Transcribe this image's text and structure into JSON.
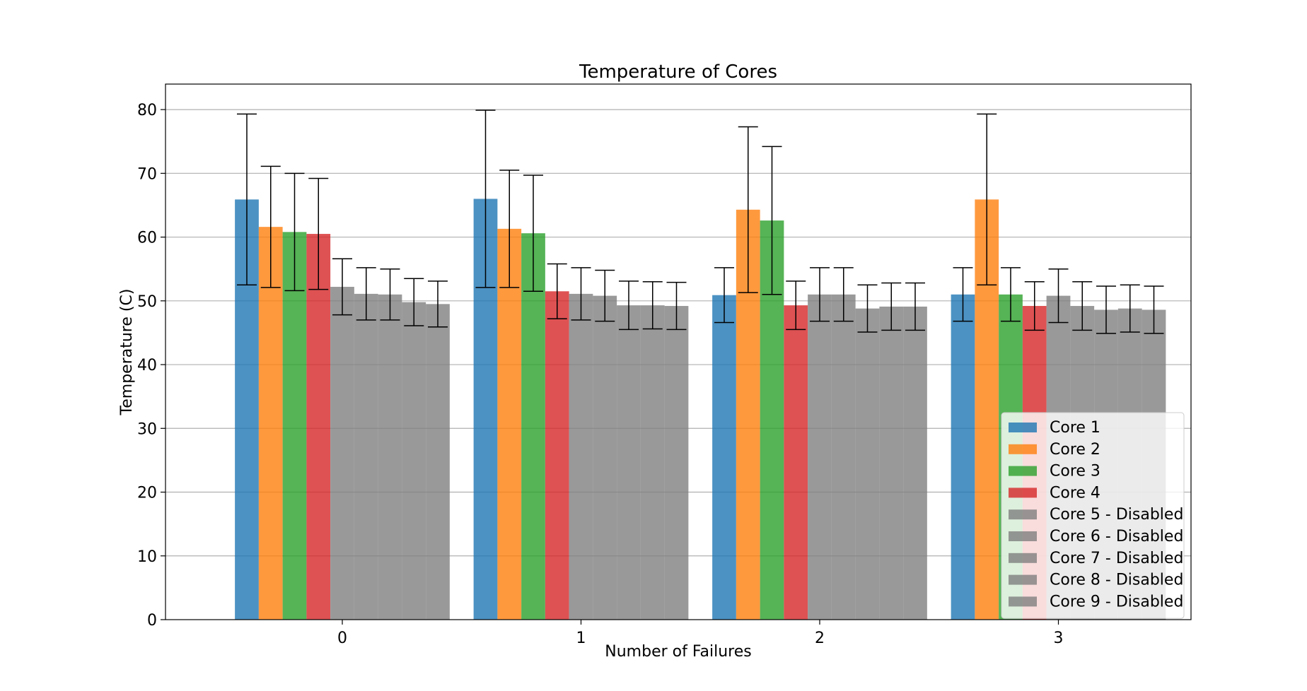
{
  "chart_data": {
    "type": "bar",
    "title": "Temperature of Cores",
    "xlabel": "Number of Failures",
    "ylabel": "Temperature (C)",
    "categories": [
      "0",
      "1",
      "2",
      "3"
    ],
    "ylim": [
      0,
      84
    ],
    "yticks": [
      "0",
      "10",
      "20",
      "30",
      "40",
      "50",
      "60",
      "70",
      "80"
    ],
    "grid": "horizontal",
    "legend_position": "lower-right",
    "error_bars": true,
    "series": [
      {
        "name": "Core 1",
        "color": "#1f77b4",
        "values": [
          65.9,
          66.0,
          50.9,
          51.0
        ],
        "errors": [
          13.4,
          13.9,
          4.3,
          4.2
        ]
      },
      {
        "name": "Core 2",
        "color": "#ff7f0e",
        "values": [
          61.6,
          61.3,
          64.3,
          65.9
        ],
        "errors": [
          9.5,
          9.2,
          13.0,
          13.4
        ]
      },
      {
        "name": "Core 3",
        "color": "#2ca02c",
        "values": [
          60.8,
          60.6,
          62.6,
          51.0
        ],
        "errors": [
          9.2,
          9.1,
          11.6,
          4.2
        ]
      },
      {
        "name": "Core 4",
        "color": "#d62728",
        "values": [
          60.5,
          51.5,
          49.3,
          49.2
        ],
        "errors": [
          8.7,
          4.3,
          3.8,
          3.8
        ]
      },
      {
        "name": "Core 5 - Disabled",
        "color": "#808080",
        "values": [
          52.2,
          51.1,
          51.0,
          50.8
        ],
        "errors": [
          4.4,
          4.1,
          4.2,
          4.2
        ]
      },
      {
        "name": "Core 6 - Disabled",
        "color": "#808080",
        "values": [
          51.1,
          50.8,
          51.0,
          49.2
        ],
        "errors": [
          4.1,
          4.0,
          4.2,
          3.8
        ]
      },
      {
        "name": "Core 7 - Disabled",
        "color": "#808080",
        "values": [
          51.0,
          49.3,
          48.8,
          48.6
        ],
        "errors": [
          4.0,
          3.8,
          3.7,
          3.7
        ]
      },
      {
        "name": "Core 8 - Disabled",
        "color": "#808080",
        "values": [
          49.8,
          49.3,
          49.1,
          48.8
        ],
        "errors": [
          3.7,
          3.7,
          3.7,
          3.7
        ]
      },
      {
        "name": "Core 9 - Disabled",
        "color": "#808080",
        "values": [
          49.5,
          49.2,
          49.1,
          48.6
        ],
        "errors": [
          3.6,
          3.7,
          3.7,
          3.7
        ]
      }
    ]
  }
}
